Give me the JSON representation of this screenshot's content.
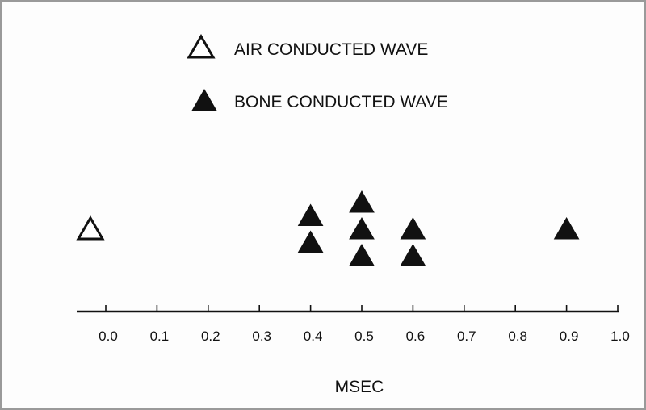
{
  "chart_data": {
    "type": "scatter",
    "title": "",
    "xlabel": "MSEC",
    "ylabel": "",
    "xlim": [
      -0.05,
      1.0
    ],
    "x_ticks": [
      "0.0",
      "0.1",
      "0.2",
      "0.3",
      "0.4",
      "0.5",
      "0.6",
      "0.7",
      "0.8",
      "0.9",
      "1.0"
    ],
    "grid": false,
    "legend_placement": "top-center",
    "series": [
      {
        "name": "AIR CONDUCTED WAVE",
        "marker": "open-triangle",
        "color": "#111111",
        "points": [
          {
            "x": -0.03,
            "row": 0
          }
        ]
      },
      {
        "name": "BONE CONDUCTED WAVE",
        "marker": "filled-triangle",
        "color": "#111111",
        "points": [
          {
            "x": 0.4,
            "row": 0.5
          },
          {
            "x": 0.4,
            "row": -0.5
          },
          {
            "x": 0.5,
            "row": 1
          },
          {
            "x": 0.5,
            "row": 0
          },
          {
            "x": 0.5,
            "row": -1
          },
          {
            "x": 0.6,
            "row": 0
          },
          {
            "x": 0.6,
            "row": -1
          },
          {
            "x": 0.9,
            "row": 0
          }
        ]
      }
    ]
  }
}
